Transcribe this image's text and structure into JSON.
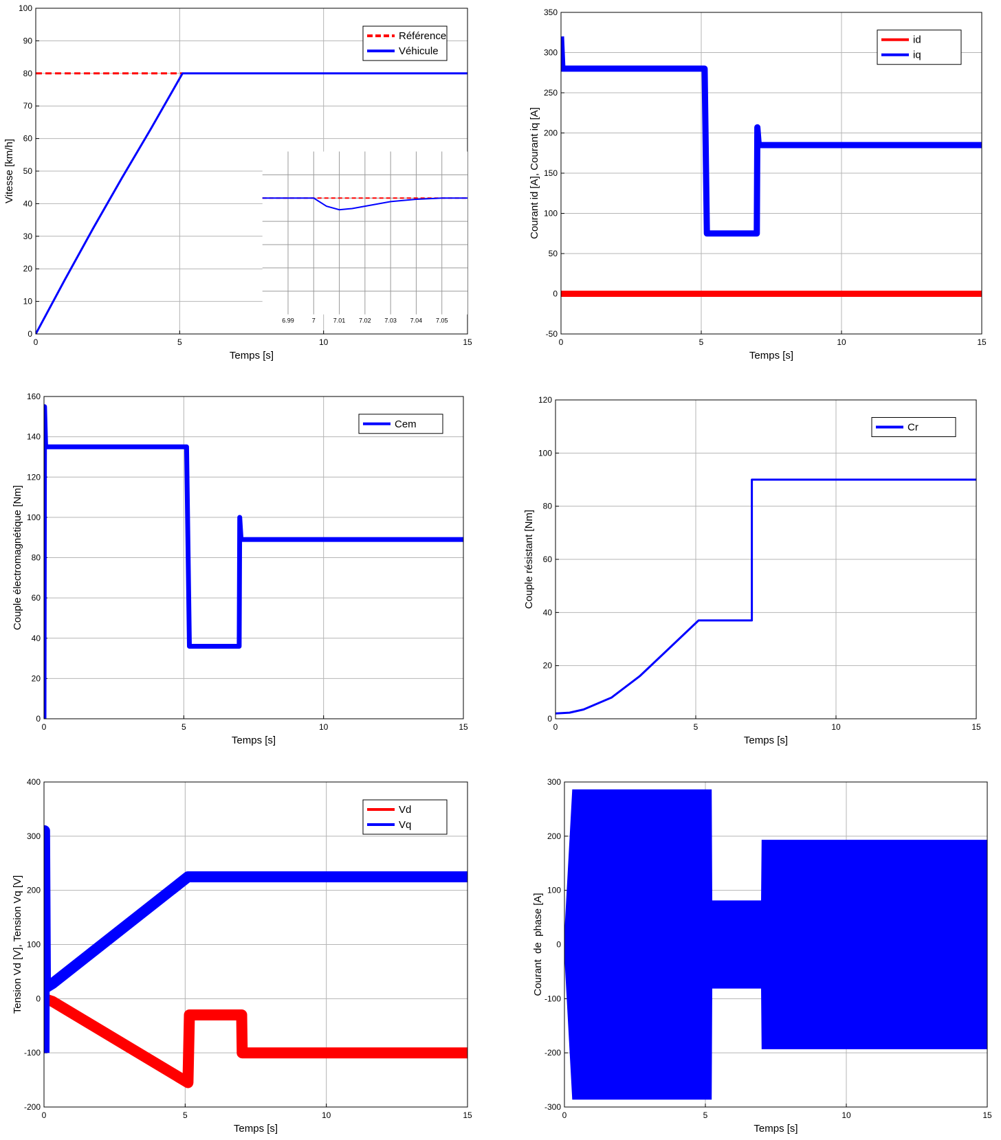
{
  "chart_data": [
    {
      "type": "line",
      "ylabel": "Vitesse [km/h]",
      "xlabel": "Temps [s]",
      "xlim": [
        0,
        15
      ],
      "xticks": [
        0,
        5,
        10,
        15
      ],
      "ylim": [
        0,
        100
      ],
      "yticks": [
        0,
        10,
        20,
        30,
        40,
        50,
        60,
        70,
        80,
        90,
        100
      ],
      "grid": true,
      "legend": "northeast",
      "series": [
        {
          "name": "Référence",
          "color": "#ff0000",
          "dash": true,
          "x": [
            0,
            5.1
          ],
          "values": [
            80,
            80
          ]
        },
        {
          "name": "Véhicule",
          "color": "#0000ff",
          "x": [
            0,
            1,
            2,
            3,
            4,
            5.1,
            15
          ],
          "values": [
            0,
            16.5,
            32.5,
            48,
            63,
            80,
            80
          ]
        }
      ],
      "inset": {
        "xlim": [
          6.98,
          7.06
        ],
        "xticks": [
          6.99,
          7,
          7.01,
          7.02,
          7.03,
          7.04,
          7.05
        ],
        "ylim": [
          79.5,
          80.2
        ],
        "series": [
          {
            "color": "#ff0000",
            "dash": true,
            "x": [
              6.98,
              7.06
            ],
            "values": [
              80,
              80
            ]
          },
          {
            "color": "#0000ff",
            "x": [
              6.98,
              7.0,
              7.005,
              7.01,
              7.015,
              7.02,
              7.03,
              7.04,
              7.05,
              7.06
            ],
            "values": [
              80,
              80,
              79.965,
              79.95,
              79.955,
              79.965,
              79.985,
              79.995,
              80,
              80
            ]
          }
        ]
      }
    },
    {
      "type": "line",
      "ylabel": "Courant id [A], Courant iq [A]",
      "xlabel": "Temps [s]",
      "xlim": [
        0,
        15
      ],
      "xticks": [
        0,
        5,
        10,
        15
      ],
      "ylim": [
        -50,
        350
      ],
      "yticks": [
        -50,
        0,
        50,
        100,
        150,
        200,
        250,
        300,
        350
      ],
      "grid": true,
      "legend": "northeast",
      "series": [
        {
          "name": "id",
          "color": "#ff0000",
          "width": 9,
          "x": [
            0,
            15
          ],
          "values": [
            0,
            0
          ]
        },
        {
          "name": "iq",
          "color": "#0000ff",
          "width": 9,
          "x": [
            0,
            0.05,
            5.12,
            5.2,
            6.98,
            7.0,
            7.05,
            15
          ],
          "values": [
            320,
            280,
            280,
            75,
            75,
            207,
            185,
            185
          ]
        }
      ]
    },
    {
      "type": "line",
      "ylabel": "Couple électromagnétique [Nm]",
      "xlabel": "Temps [s]",
      "xlim": [
        0,
        15
      ],
      "xticks": [
        0,
        5,
        10,
        15
      ],
      "ylim": [
        0,
        160
      ],
      "yticks": [
        0,
        20,
        40,
        60,
        80,
        100,
        120,
        140,
        160
      ],
      "grid": true,
      "legend": "northeast",
      "series": [
        {
          "name": "Cem",
          "color": "#0000ff",
          "width": 7,
          "x": [
            0,
            0.02,
            0.06,
            5.1,
            5.2,
            6.98,
            7.0,
            7.05,
            15
          ],
          "values": [
            0,
            155,
            135,
            135,
            36,
            36,
            100,
            89,
            89
          ]
        }
      ]
    },
    {
      "type": "line",
      "ylabel": "Couple résistant [Nm]",
      "xlabel": "Temps [s]",
      "xlim": [
        0,
        15
      ],
      "xticks": [
        0,
        5,
        10,
        15
      ],
      "ylim": [
        0,
        120
      ],
      "yticks": [
        0,
        20,
        40,
        60,
        80,
        100,
        120
      ],
      "grid": true,
      "legend": "northeast",
      "series": [
        {
          "name": "Cr",
          "color": "#0000ff",
          "x": [
            0,
            0.5,
            1,
            2,
            3,
            4,
            5.1,
            7,
            7,
            15
          ],
          "values": [
            2,
            2.3,
            3.5,
            8,
            16,
            26,
            37,
            37,
            90,
            90
          ]
        }
      ]
    },
    {
      "type": "line",
      "ylabel": "Tension Vd [V], Tension Vq [V]",
      "xlabel": "Temps [s]",
      "xlim": [
        0,
        15
      ],
      "xticks": [
        0,
        5,
        10,
        15
      ],
      "ylim": [
        -200,
        400
      ],
      "yticks": [
        -200,
        -100,
        0,
        100,
        200,
        300,
        400
      ],
      "grid": true,
      "legend": "northeast",
      "series": [
        {
          "name": "Vd",
          "color": "#ff0000",
          "width": 16,
          "x": [
            0,
            0.3,
            5.1,
            5.15,
            7.0,
            7.02,
            15
          ],
          "values": [
            0,
            -5,
            -155,
            -30,
            -30,
            -100,
            -100
          ]
        },
        {
          "name": "Vq",
          "color": "#0000ff",
          "width": 16,
          "x": [
            0,
            0.02,
            0.05,
            0.3,
            5.1,
            15
          ],
          "values": [
            -100,
            310,
            20,
            28,
            225,
            225
          ]
        }
      ]
    },
    {
      "type": "range",
      "ylabel": "Courant  de  phase [A]",
      "xlabel": "Temps [s]",
      "xlim": [
        0,
        15
      ],
      "xticks": [
        0,
        5,
        10,
        15
      ],
      "ylim": [
        -300,
        300
      ],
      "yticks": [
        -300,
        -200,
        -100,
        0,
        100,
        200,
        300
      ],
      "grid": true,
      "color": "#0000ff",
      "x": [
        0,
        0.3,
        5.2,
        5.22,
        7.0,
        7.02,
        15
      ],
      "high": [
        0,
        285,
        285,
        80,
        80,
        192,
        192
      ],
      "low": [
        0,
        -285,
        -285,
        -80,
        -80,
        -192,
        -192
      ]
    }
  ]
}
